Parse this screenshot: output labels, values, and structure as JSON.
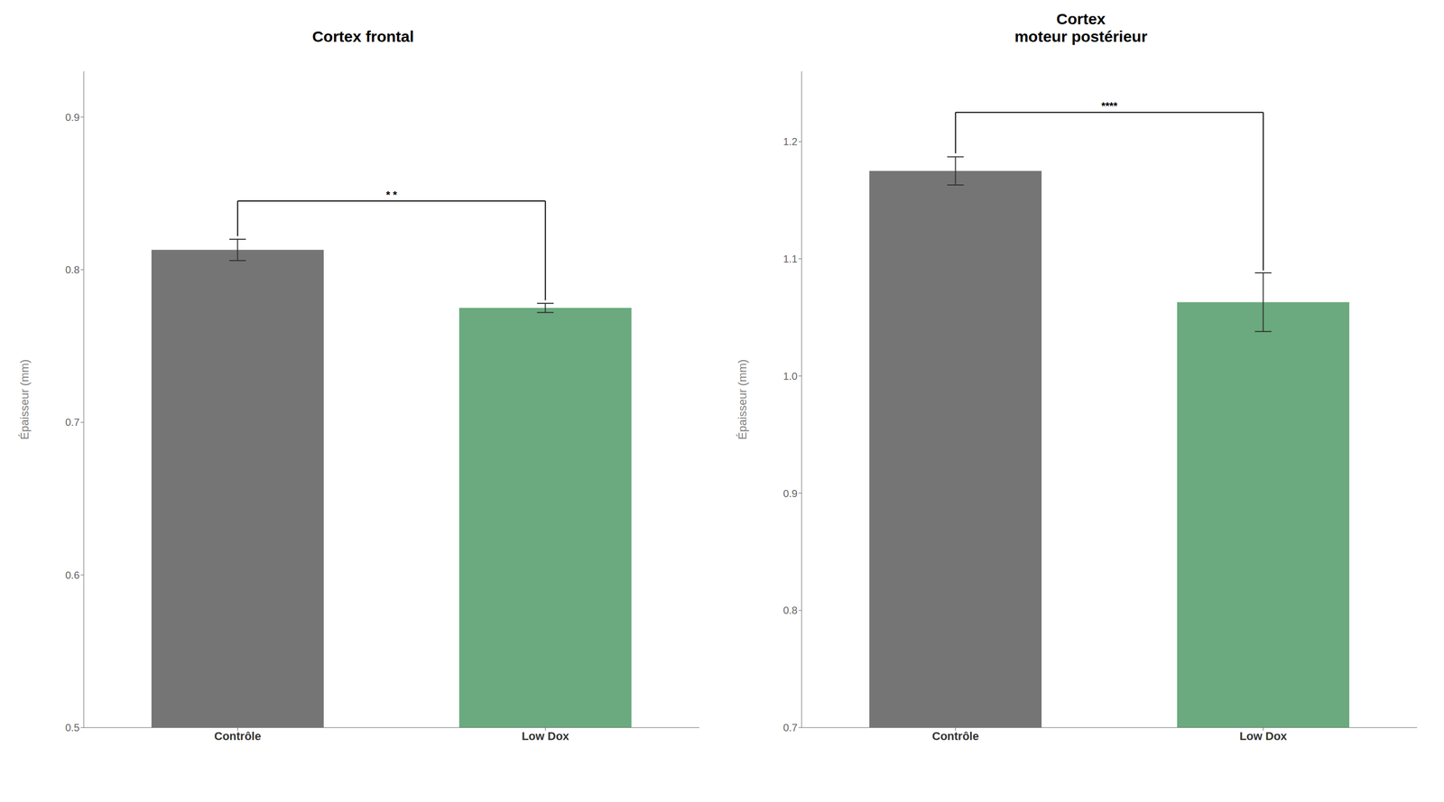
{
  "chart_data": [
    {
      "type": "bar",
      "title": "Cortex frontal",
      "categories": [
        "Contrôle",
        "Low Dox"
      ],
      "values": [
        0.813,
        0.775
      ],
      "errors": [
        0.007,
        0.003
      ],
      "colors": [
        "#757575",
        "#6aaa7e"
      ],
      "ylim": [
        0.5,
        0.93
      ],
      "yticks": [
        0.5,
        0.6,
        0.7,
        0.8,
        0.9
      ],
      "ylabel": "Épaisseur (mm)",
      "annotation": {
        "text": "* *",
        "y": 0.845,
        "left_y": 0.822,
        "right_y": 0.78
      }
    },
    {
      "type": "bar",
      "title": "Cortex\nmoteur postérieur",
      "categories": [
        "Contrôle",
        "Low Dox"
      ],
      "values": [
        1.175,
        1.063
      ],
      "errors": [
        0.012,
        0.025
      ],
      "colors": [
        "#757575",
        "#6aaa7e"
      ],
      "ylim": [
        0.7,
        1.26
      ],
      "yticks": [
        0.7,
        0.8,
        0.9,
        {
          "value": 1,
          "label": "1.0"
        },
        1.1,
        1.2
      ],
      "ylabel": "Épaisseur (mm)",
      "annotation": {
        "text": "****",
        "y": 1.225,
        "left_y": 1.19,
        "right_y": 1.09
      }
    }
  ]
}
